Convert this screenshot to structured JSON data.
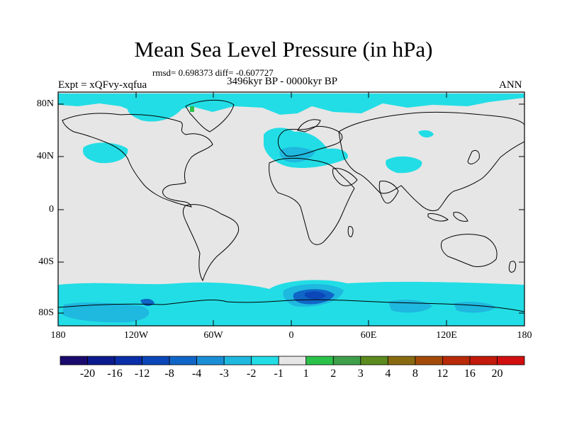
{
  "title": "Mean Sea Level Pressure (in hPa)",
  "stats_text": "rmsd= 0.698373 diff= -0.607727",
  "period_text": "3496kyr BP - 0000kyr BP",
  "experiment_text": "Expt = xQFvy-xqfua",
  "season_text": "ANN",
  "lat_labels": [
    "80N",
    "40N",
    "0",
    "40S",
    "80S"
  ],
  "lon_labels": [
    "180",
    "120W",
    "60W",
    "0",
    "60E",
    "120E",
    "180"
  ],
  "colorbar": {
    "labels": [
      "-20",
      "-16",
      "-12",
      "-8",
      "-4",
      "-3",
      "-2",
      "-1",
      "1",
      "2",
      "3",
      "4",
      "8",
      "12",
      "16",
      "20"
    ],
    "colors": [
      "#1b0a6e",
      "#0b1a8c",
      "#0a2ea8",
      "#0b47b8",
      "#1066c7",
      "#1a8fd6",
      "#1fb8df",
      "#22dde5",
      "#e6e6e6",
      "#2cc24a",
      "#3ea04a",
      "#5b8a1e",
      "#8a6a10",
      "#a44a08",
      "#b82a08",
      "#c21a0a",
      "#d20f0f"
    ]
  },
  "colors": {
    "background": "#e6e6e6",
    "cyan": "#22dde5",
    "light_blue": "#1fb8df",
    "blue": "#1066c7",
    "dark_blue": "#0b47b8"
  }
}
